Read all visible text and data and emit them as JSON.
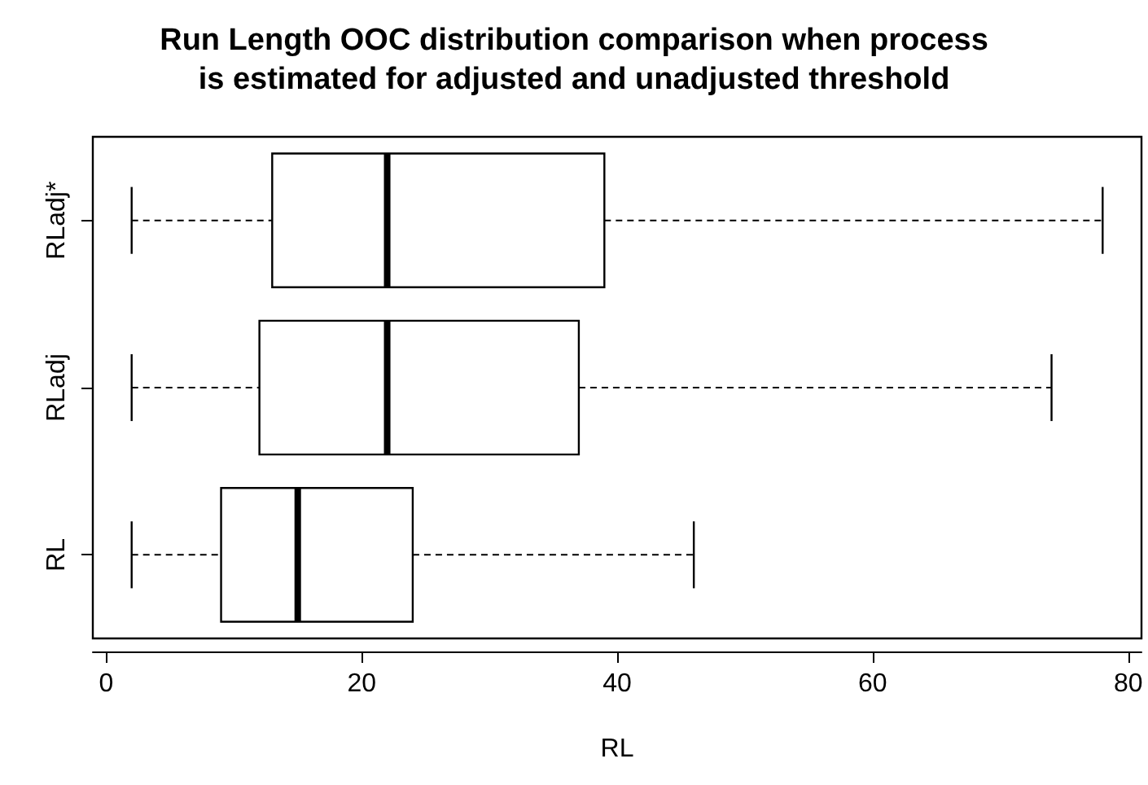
{
  "chart_data": {
    "type": "box",
    "title": "Run Length OOC distribution comparison when process\nis estimated for adjusted and unadjusted threshold",
    "xlabel": "RL",
    "orientation": "horizontal",
    "categories": [
      "RLadj*",
      "RLadj",
      "RL"
    ],
    "boxes": [
      {
        "low": 2,
        "q1": 13,
        "median": 22,
        "q3": 39,
        "high": 78
      },
      {
        "low": 2,
        "q1": 12,
        "median": 22,
        "q3": 37,
        "high": 74
      },
      {
        "low": 2,
        "q1": 9,
        "median": 15,
        "q3": 24,
        "high": 46
      }
    ],
    "xlim": [
      -1.04,
      81.04
    ],
    "xticks": [
      0,
      20,
      40,
      60,
      80
    ],
    "line_style": "dashed"
  }
}
